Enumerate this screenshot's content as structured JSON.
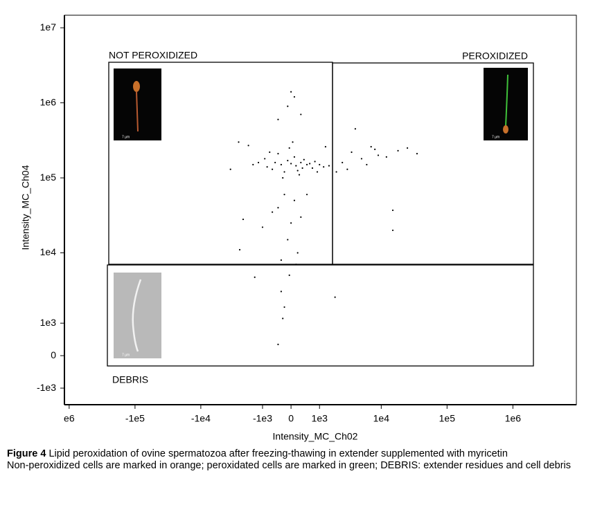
{
  "chart_data": {
    "type": "scatter",
    "xlabel": "Intensity_MC_Ch02",
    "ylabel": "Intensity_MC_Ch04",
    "xscale": "biexponential",
    "yscale": "biexponential",
    "xlim": [
      -1180000,
      9200000
    ],
    "ylim": [
      -1830,
      14700000
    ],
    "xticks": [
      {
        "value": -1000000,
        "label": "e6"
      },
      {
        "value": -100000,
        "label": "-1e5"
      },
      {
        "value": -10000,
        "label": "-1e4"
      },
      {
        "value": -1000,
        "label": "-1e3"
      },
      0,
      {
        "value": 1000,
        "label": "1e3"
      },
      {
        "value": 10000,
        "label": "1e4"
      },
      {
        "value": 100000,
        "label": "1e5"
      },
      {
        "value": 1000000,
        "label": "1e6"
      }
    ],
    "yticks": [
      {
        "value": -1000,
        "label": "-1e3"
      },
      0,
      {
        "value": 1000,
        "label": "1e3"
      },
      {
        "value": 10000,
        "label": "1e4"
      },
      {
        "value": 100000,
        "label": "1e5"
      },
      {
        "value": 1000000,
        "label": "1e6"
      },
      {
        "value": 10000000,
        "label": "1e7"
      }
    ],
    "color": "#000000",
    "x": [
      -800,
      -500,
      -300,
      -100,
      0,
      150,
      300,
      500,
      700,
      1000,
      -1200,
      -600,
      -200,
      100,
      400,
      800,
      1200,
      -900,
      -400,
      200,
      600,
      -1500,
      1500,
      -50,
      50,
      250,
      -250,
      900,
      -700,
      350,
      2500,
      3500,
      5000,
      7000,
      9000,
      12000,
      18000,
      25000,
      35000,
      4000,
      6000,
      3000,
      8000,
      15000,
      15000,
      -200,
      100,
      -400,
      300,
      0,
      -100,
      200,
      -300,
      150,
      -50,
      500,
      -600,
      -1000,
      -2200,
      -2500,
      -300,
      -200,
      -250,
      -400,
      1900,
      -1400,
      0,
      100,
      -100,
      300,
      -400,
      -2600,
      -3500,
      2000,
      -1800,
      1300
    ],
    "values": [
      140000,
      160000,
      150000,
      170000,
      155000,
      145000,
      160000,
      150000,
      135000,
      150000,
      160000,
      130000,
      120000,
      190000,
      175000,
      165000,
      140000,
      180000,
      210000,
      125000,
      155000,
      150000,
      145000,
      250000,
      300000,
      110000,
      100000,
      120000,
      220000,
      135000,
      160000,
      220000,
      180000,
      260000,
      200000,
      190000,
      230000,
      250000,
      210000,
      450000,
      150000,
      130000,
      240000,
      37000,
      20000,
      60000,
      50000,
      40000,
      30000,
      25000,
      15000,
      10000,
      8000,
      7000,
      5000,
      60000,
      35000,
      22000,
      28000,
      11000,
      3000,
      1800,
      1200,
      300,
      2500,
      4700,
      1400000,
      1200000,
      900000,
      700000,
      600000,
      300000,
      130000,
      120000,
      270000,
      260000
    ],
    "gates": {
      "not_peroxidized": "NOT PEROXIDIZED",
      "peroxidized": "PEROXIDIZED",
      "debris": "DEBRIS"
    },
    "inset_scale_label": "7 µm"
  },
  "caption": {
    "label": "Figure 4",
    "text": "Lipid peroxidation of ovine spermatozoa after freezing-thawing in extender supplemented with myricetin",
    "note": "Non-peroxidized cells are marked in orange; peroxidated cells are marked in green; DEBRIS: extender residues and cell debris"
  }
}
